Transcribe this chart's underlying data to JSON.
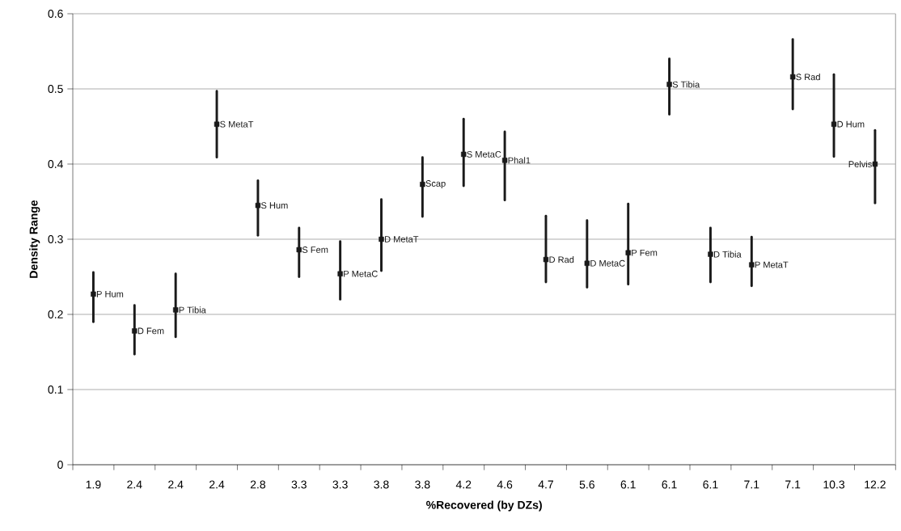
{
  "chart_data": {
    "type": "scatter",
    "xlabel": "%Recovered (by DZs)",
    "ylabel": "Density Range",
    "categories": [
      "1.9",
      "2.4",
      "2.4",
      "2.4",
      "2.8",
      "3.3",
      "3.3",
      "3.8",
      "3.8",
      "4.2",
      "4.6",
      "4.7",
      "5.6",
      "6.1",
      "6.1",
      "6.1",
      "7.1",
      "7.1",
      "10.3",
      "12.2"
    ],
    "ylim": [
      0,
      0.6
    ],
    "yticks": [
      0,
      0.1,
      0.2,
      0.3,
      0.4,
      0.5,
      0.6
    ],
    "grid": "y",
    "marker": "square",
    "series": [
      {
        "name": "P Hum",
        "color": "#1a1a1a",
        "values": [
          0.227,
          null,
          null,
          null,
          null,
          null,
          null,
          null,
          null,
          null,
          null,
          null,
          null,
          null,
          null,
          null,
          null,
          null,
          null,
          null
        ],
        "errors": [
          [
            0.19,
            0.256
          ],
          null,
          null,
          null,
          null,
          null,
          null,
          null,
          null,
          null,
          null,
          null,
          null,
          null,
          null,
          null,
          null,
          null,
          null,
          null
        ]
      },
      {
        "name": "D Fem",
        "color": "#1a1a1a",
        "values": [
          null,
          0.178,
          null,
          null,
          null,
          null,
          null,
          null,
          null,
          null,
          null,
          null,
          null,
          null,
          null,
          null,
          null,
          null,
          null,
          null
        ],
        "errors": [
          null,
          [
            0.147,
            0.212
          ],
          null,
          null,
          null,
          null,
          null,
          null,
          null,
          null,
          null,
          null,
          null,
          null,
          null,
          null,
          null,
          null,
          null,
          null
        ]
      },
      {
        "name": "P Tibia",
        "color": "#1a1a1a",
        "values": [
          null,
          null,
          0.206,
          null,
          null,
          null,
          null,
          null,
          null,
          null,
          null,
          null,
          null,
          null,
          null,
          null,
          null,
          null,
          null,
          null
        ],
        "errors": [
          null,
          null,
          [
            0.17,
            0.254
          ],
          null,
          null,
          null,
          null,
          null,
          null,
          null,
          null,
          null,
          null,
          null,
          null,
          null,
          null,
          null,
          null,
          null
        ]
      },
      {
        "name": "S MetaT",
        "color": "#1a1a1a",
        "values": [
          null,
          null,
          null,
          0.453,
          null,
          null,
          null,
          null,
          null,
          null,
          null,
          null,
          null,
          null,
          null,
          null,
          null,
          null,
          null,
          null
        ],
        "errors": [
          null,
          null,
          null,
          [
            0.409,
            0.497
          ],
          null,
          null,
          null,
          null,
          null,
          null,
          null,
          null,
          null,
          null,
          null,
          null,
          null,
          null,
          null,
          null
        ]
      },
      {
        "name": "S Hum",
        "color": "#1a1a1a",
        "values": [
          null,
          null,
          null,
          null,
          0.345,
          null,
          null,
          null,
          null,
          null,
          null,
          null,
          null,
          null,
          null,
          null,
          null,
          null,
          null,
          null
        ],
        "errors": [
          null,
          null,
          null,
          null,
          [
            0.305,
            0.378
          ],
          null,
          null,
          null,
          null,
          null,
          null,
          null,
          null,
          null,
          null,
          null,
          null,
          null,
          null,
          null
        ]
      },
      {
        "name": "S Fem",
        "color": "#1a1a1a",
        "values": [
          null,
          null,
          null,
          null,
          null,
          0.286,
          null,
          null,
          null,
          null,
          null,
          null,
          null,
          null,
          null,
          null,
          null,
          null,
          null,
          null
        ],
        "errors": [
          null,
          null,
          null,
          null,
          null,
          [
            0.25,
            0.315
          ],
          null,
          null,
          null,
          null,
          null,
          null,
          null,
          null,
          null,
          null,
          null,
          null,
          null,
          null
        ]
      },
      {
        "name": "P MetaC",
        "color": "#1a1a1a",
        "values": [
          null,
          null,
          null,
          null,
          null,
          null,
          0.254,
          null,
          null,
          null,
          null,
          null,
          null,
          null,
          null,
          null,
          null,
          null,
          null,
          null
        ],
        "errors": [
          null,
          null,
          null,
          null,
          null,
          null,
          [
            0.22,
            0.297
          ],
          null,
          null,
          null,
          null,
          null,
          null,
          null,
          null,
          null,
          null,
          null,
          null,
          null
        ]
      },
      {
        "name": "D MetaT",
        "color": "#1a1a1a",
        "values": [
          null,
          null,
          null,
          null,
          null,
          null,
          null,
          0.3,
          null,
          null,
          null,
          null,
          null,
          null,
          null,
          null,
          null,
          null,
          null,
          null
        ],
        "errors": [
          null,
          null,
          null,
          null,
          null,
          null,
          null,
          [
            0.258,
            0.353
          ],
          null,
          null,
          null,
          null,
          null,
          null,
          null,
          null,
          null,
          null,
          null,
          null
        ]
      },
      {
        "name": "Scap",
        "color": "#1a1a1a",
        "values": [
          null,
          null,
          null,
          null,
          null,
          null,
          null,
          null,
          0.373,
          null,
          null,
          null,
          null,
          null,
          null,
          null,
          null,
          null,
          null,
          null
        ],
        "errors": [
          null,
          null,
          null,
          null,
          null,
          null,
          null,
          null,
          [
            0.33,
            0.409
          ],
          null,
          null,
          null,
          null,
          null,
          null,
          null,
          null,
          null,
          null,
          null
        ]
      },
      {
        "name": "S MetaC",
        "color": "#1a1a1a",
        "values": [
          null,
          null,
          null,
          null,
          null,
          null,
          null,
          null,
          null,
          0.413,
          null,
          null,
          null,
          null,
          null,
          null,
          null,
          null,
          null,
          null
        ],
        "errors": [
          null,
          null,
          null,
          null,
          null,
          null,
          null,
          null,
          null,
          [
            0.371,
            0.46
          ],
          null,
          null,
          null,
          null,
          null,
          null,
          null,
          null,
          null,
          null
        ]
      },
      {
        "name": "Phal1",
        "color": "#1a1a1a",
        "values": [
          null,
          null,
          null,
          null,
          null,
          null,
          null,
          null,
          null,
          null,
          0.405,
          null,
          null,
          null,
          null,
          null,
          null,
          null,
          null,
          null
        ],
        "errors": [
          null,
          null,
          null,
          null,
          null,
          null,
          null,
          null,
          null,
          null,
          [
            0.352,
            0.443
          ],
          null,
          null,
          null,
          null,
          null,
          null,
          null,
          null,
          null
        ]
      },
      {
        "name": "D Rad",
        "color": "#1a1a1a",
        "values": [
          null,
          null,
          null,
          null,
          null,
          null,
          null,
          null,
          null,
          null,
          null,
          0.273,
          null,
          null,
          null,
          null,
          null,
          null,
          null,
          null
        ],
        "errors": [
          null,
          null,
          null,
          null,
          null,
          null,
          null,
          null,
          null,
          null,
          null,
          [
            0.243,
            0.331
          ],
          null,
          null,
          null,
          null,
          null,
          null,
          null,
          null
        ]
      },
      {
        "name": "D MetaC",
        "color": "#1a1a1a",
        "values": [
          null,
          null,
          null,
          null,
          null,
          null,
          null,
          null,
          null,
          null,
          null,
          null,
          0.268,
          null,
          null,
          null,
          null,
          null,
          null,
          null
        ],
        "errors": [
          null,
          null,
          null,
          null,
          null,
          null,
          null,
          null,
          null,
          null,
          null,
          null,
          [
            0.236,
            0.325
          ],
          null,
          null,
          null,
          null,
          null,
          null,
          null
        ]
      },
      {
        "name": "P Fem",
        "color": "#1a1a1a",
        "values": [
          null,
          null,
          null,
          null,
          null,
          null,
          null,
          null,
          null,
          null,
          null,
          null,
          null,
          0.282,
          null,
          null,
          null,
          null,
          null,
          null
        ],
        "errors": [
          null,
          null,
          null,
          null,
          null,
          null,
          null,
          null,
          null,
          null,
          null,
          null,
          null,
          [
            0.24,
            0.347
          ],
          null,
          null,
          null,
          null,
          null,
          null
        ]
      },
      {
        "name": "S Tibia",
        "color": "#1a1a1a",
        "values": [
          null,
          null,
          null,
          null,
          null,
          null,
          null,
          null,
          null,
          null,
          null,
          null,
          null,
          null,
          0.506,
          null,
          null,
          null,
          null,
          null
        ],
        "errors": [
          null,
          null,
          null,
          null,
          null,
          null,
          null,
          null,
          null,
          null,
          null,
          null,
          null,
          null,
          [
            0.466,
            0.54
          ],
          null,
          null,
          null,
          null,
          null
        ]
      },
      {
        "name": "D Tibia",
        "color": "#1a1a1a",
        "values": [
          null,
          null,
          null,
          null,
          null,
          null,
          null,
          null,
          null,
          null,
          null,
          null,
          null,
          null,
          null,
          0.28,
          null,
          null,
          null,
          null
        ],
        "errors": [
          null,
          null,
          null,
          null,
          null,
          null,
          null,
          null,
          null,
          null,
          null,
          null,
          null,
          null,
          null,
          [
            0.243,
            0.315
          ],
          null,
          null,
          null,
          null
        ]
      },
      {
        "name": "P MetaT",
        "color": "#1a1a1a",
        "values": [
          null,
          null,
          null,
          null,
          null,
          null,
          null,
          null,
          null,
          null,
          null,
          null,
          null,
          null,
          null,
          null,
          0.266,
          null,
          null,
          null
        ],
        "errors": [
          null,
          null,
          null,
          null,
          null,
          null,
          null,
          null,
          null,
          null,
          null,
          null,
          null,
          null,
          null,
          null,
          [
            0.238,
            0.303
          ],
          null,
          null,
          null
        ]
      },
      {
        "name": "S Rad",
        "color": "#1a1a1a",
        "values": [
          null,
          null,
          null,
          null,
          null,
          null,
          null,
          null,
          null,
          null,
          null,
          null,
          null,
          null,
          null,
          null,
          null,
          0.516,
          null,
          null
        ],
        "errors": [
          null,
          null,
          null,
          null,
          null,
          null,
          null,
          null,
          null,
          null,
          null,
          null,
          null,
          null,
          null,
          null,
          null,
          [
            0.473,
            0.566
          ],
          null,
          null
        ]
      },
      {
        "name": "D Hum",
        "color": "#1a1a1a",
        "values": [
          null,
          null,
          null,
          null,
          null,
          null,
          null,
          null,
          null,
          null,
          null,
          null,
          null,
          null,
          null,
          null,
          null,
          null,
          0.453,
          null
        ],
        "errors": [
          null,
          null,
          null,
          null,
          null,
          null,
          null,
          null,
          null,
          null,
          null,
          null,
          null,
          null,
          null,
          null,
          null,
          null,
          [
            0.41,
            0.519
          ],
          null
        ]
      },
      {
        "name": "Pelvis",
        "color": "#1a1a1a",
        "values": [
          null,
          null,
          null,
          null,
          null,
          null,
          null,
          null,
          null,
          null,
          null,
          null,
          null,
          null,
          null,
          null,
          null,
          null,
          null,
          0.4
        ],
        "errors": [
          null,
          null,
          null,
          null,
          null,
          null,
          null,
          null,
          null,
          null,
          null,
          null,
          null,
          null,
          null,
          null,
          null,
          null,
          null,
          [
            0.348,
            0.445
          ]
        ]
      }
    ]
  }
}
